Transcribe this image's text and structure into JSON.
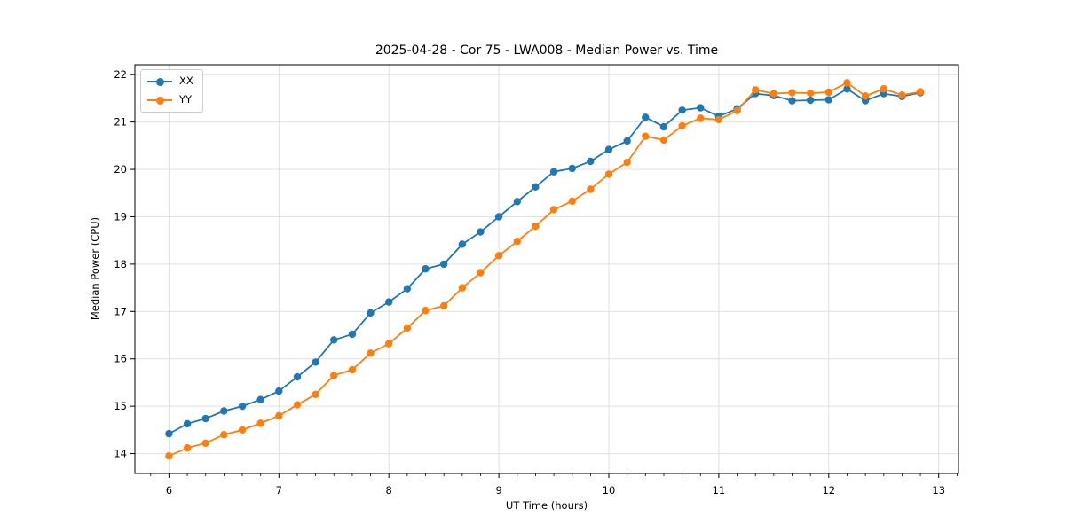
{
  "chart_data": {
    "type": "line",
    "title": "2025-04-28 - Cor 75 - LWA008 - Median Power vs. Time",
    "xlabel": "UT Time (hours)",
    "ylabel": "Median Power (CPU)",
    "xlim": [
      5.69,
      13.18
    ],
    "ylim": [
      13.58,
      22.21
    ],
    "x_ticks": [
      6,
      7,
      8,
      9,
      10,
      11,
      12,
      13
    ],
    "y_ticks": [
      14,
      15,
      16,
      17,
      18,
      19,
      20,
      21,
      22
    ],
    "x_minor_step": 0.16667,
    "grid": true,
    "grid_color": "#e0e0e0",
    "legend_position": "upper-left",
    "x": [
      6.0,
      6.167,
      6.333,
      6.5,
      6.667,
      6.833,
      7.0,
      7.167,
      7.333,
      7.5,
      7.667,
      7.833,
      8.0,
      8.167,
      8.333,
      8.5,
      8.667,
      8.833,
      9.0,
      9.167,
      9.333,
      9.5,
      9.667,
      9.833,
      10.0,
      10.167,
      10.333,
      10.5,
      10.667,
      10.833,
      11.0,
      11.167,
      11.333,
      11.5,
      11.667,
      11.833,
      12.0,
      12.167,
      12.333,
      12.5,
      12.667,
      12.833
    ],
    "series": [
      {
        "name": "XX",
        "color": "#1f77b4",
        "values": [
          14.42,
          14.63,
          14.74,
          14.9,
          15.0,
          15.14,
          15.32,
          15.62,
          15.93,
          16.4,
          16.52,
          16.97,
          17.2,
          17.48,
          17.9,
          18.0,
          18.42,
          18.68,
          19.0,
          19.32,
          19.63,
          19.95,
          20.02,
          20.17,
          20.42,
          20.6,
          21.1,
          20.9,
          21.25,
          21.3,
          21.12,
          21.28,
          21.6,
          21.56,
          21.45,
          21.46,
          21.47,
          21.7,
          21.45,
          21.6,
          21.54,
          21.62
        ]
      },
      {
        "name": "YY",
        "color": "#ff7f0e",
        "values": [
          13.95,
          14.12,
          14.22,
          14.4,
          14.5,
          14.64,
          14.8,
          15.03,
          15.25,
          15.65,
          15.77,
          16.12,
          16.32,
          16.65,
          17.02,
          17.12,
          17.5,
          17.82,
          18.18,
          18.48,
          18.8,
          19.15,
          19.33,
          19.58,
          19.9,
          20.15,
          20.7,
          20.62,
          20.92,
          21.08,
          21.05,
          21.24,
          21.68,
          21.6,
          21.62,
          21.61,
          21.63,
          21.83,
          21.55,
          21.7,
          21.57,
          21.64
        ]
      }
    ]
  }
}
